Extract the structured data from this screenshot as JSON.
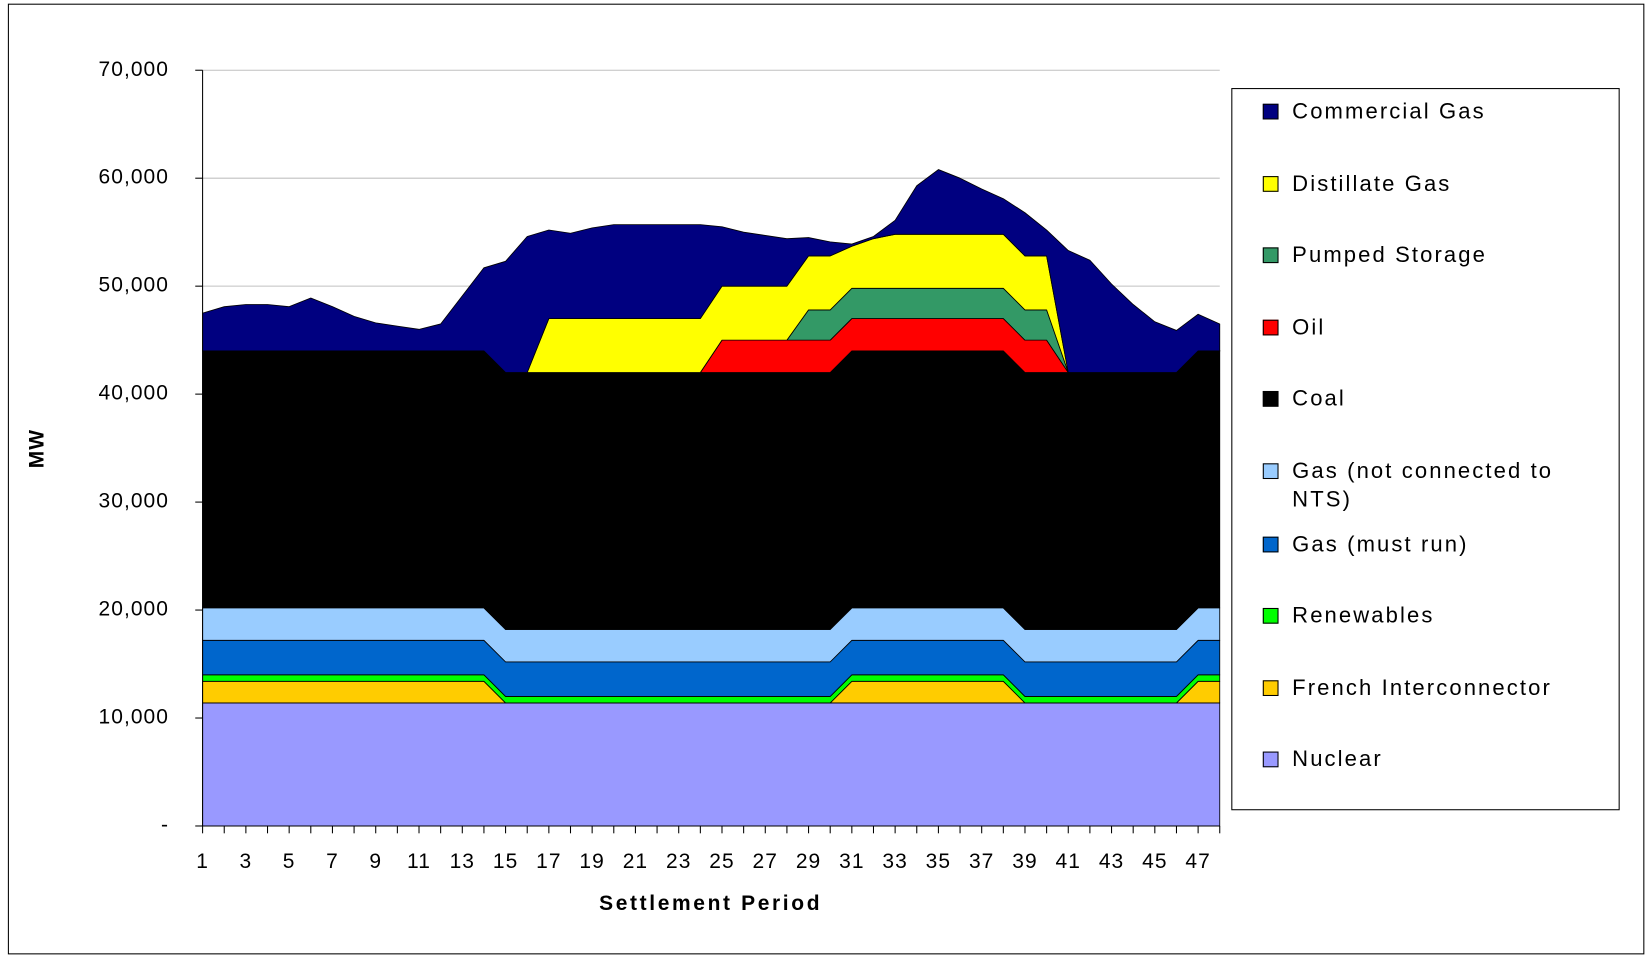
{
  "chart_data": {
    "type": "stacked_area",
    "xlabel": "Settlement Period",
    "ylabel": "MW",
    "x": [
      1,
      2,
      3,
      4,
      5,
      6,
      7,
      8,
      9,
      10,
      11,
      12,
      13,
      14,
      15,
      16,
      17,
      18,
      19,
      20,
      21,
      22,
      23,
      24,
      25,
      26,
      27,
      28,
      29,
      30,
      31,
      32,
      33,
      34,
      35,
      36,
      37,
      38,
      39,
      40,
      41,
      42,
      43,
      44,
      45,
      46,
      47,
      48
    ],
    "xlim": [
      1,
      48
    ],
    "xticks": [
      1,
      3,
      5,
      7,
      9,
      11,
      13,
      15,
      17,
      19,
      21,
      23,
      25,
      27,
      29,
      31,
      33,
      35,
      37,
      39,
      41,
      43,
      45,
      47
    ],
    "ylim": [
      0,
      70000
    ],
    "yticks": [
      {
        "value": 0,
        "label": "-"
      },
      {
        "value": 10000,
        "label": "10,000"
      },
      {
        "value": 20000,
        "label": "20,000"
      },
      {
        "value": 30000,
        "label": "30,000"
      },
      {
        "value": 40000,
        "label": "40,000"
      },
      {
        "value": 50000,
        "label": "50,000"
      },
      {
        "value": 60000,
        "label": "60,000"
      },
      {
        "value": 70000,
        "label": "70,000"
      }
    ],
    "grid": true,
    "legend": "right",
    "series": [
      {
        "name": "Nuclear",
        "color": "#9999ff",
        "values": [
          11400,
          11400,
          11400,
          11400,
          11400,
          11400,
          11400,
          11400,
          11400,
          11400,
          11400,
          11400,
          11400,
          11400,
          11400,
          11400,
          11400,
          11400,
          11400,
          11400,
          11400,
          11400,
          11400,
          11400,
          11400,
          11400,
          11400,
          11400,
          11400,
          11400,
          11400,
          11400,
          11400,
          11400,
          11400,
          11400,
          11400,
          11400,
          11400,
          11400,
          11400,
          11400,
          11400,
          11400,
          11400,
          11400,
          11400,
          11400
        ]
      },
      {
        "name": "French Interconnector",
        "color": "#ffcc00",
        "values": [
          2000,
          2000,
          2000,
          2000,
          2000,
          2000,
          2000,
          2000,
          2000,
          2000,
          2000,
          2000,
          2000,
          2000,
          0,
          0,
          0,
          0,
          0,
          0,
          0,
          0,
          0,
          0,
          0,
          0,
          0,
          0,
          0,
          0,
          2000,
          2000,
          2000,
          2000,
          2000,
          2000,
          2000,
          2000,
          0,
          0,
          0,
          0,
          0,
          0,
          0,
          0,
          2000,
          2000
        ]
      },
      {
        "name": "Renewables",
        "color": "#00ff00",
        "values": [
          600,
          600,
          600,
          600,
          600,
          600,
          600,
          600,
          600,
          600,
          600,
          600,
          600,
          600,
          600,
          600,
          600,
          600,
          600,
          600,
          600,
          600,
          600,
          600,
          600,
          600,
          600,
          600,
          600,
          600,
          600,
          600,
          600,
          600,
          600,
          600,
          600,
          600,
          600,
          600,
          600,
          600,
          600,
          600,
          600,
          600,
          600,
          600
        ]
      },
      {
        "name": "Gas (must run)",
        "color": "#0066cc",
        "values": [
          3200,
          3200,
          3200,
          3200,
          3200,
          3200,
          3200,
          3200,
          3200,
          3200,
          3200,
          3200,
          3200,
          3200,
          3200,
          3200,
          3200,
          3200,
          3200,
          3200,
          3200,
          3200,
          3200,
          3200,
          3200,
          3200,
          3200,
          3200,
          3200,
          3200,
          3200,
          3200,
          3200,
          3200,
          3200,
          3200,
          3200,
          3200,
          3200,
          3200,
          3200,
          3200,
          3200,
          3200,
          3200,
          3200,
          3200,
          3200
        ]
      },
      {
        "name": "Gas (not connected to NTS)",
        "color": "#99ccff",
        "values": [
          3000,
          3000,
          3000,
          3000,
          3000,
          3000,
          3000,
          3000,
          3000,
          3000,
          3000,
          3000,
          3000,
          3000,
          3000,
          3000,
          3000,
          3000,
          3000,
          3000,
          3000,
          3000,
          3000,
          3000,
          3000,
          3000,
          3000,
          3000,
          3000,
          3000,
          3000,
          3000,
          3000,
          3000,
          3000,
          3000,
          3000,
          3000,
          3000,
          3000,
          3000,
          3000,
          3000,
          3000,
          3000,
          3000,
          3000,
          3000
        ]
      },
      {
        "name": "Coal",
        "color": "#000000",
        "values": [
          23800,
          23800,
          23800,
          23800,
          23800,
          23800,
          23800,
          23800,
          23800,
          23800,
          23800,
          23800,
          23800,
          23800,
          23800,
          23800,
          23800,
          23800,
          23800,
          23800,
          23800,
          23800,
          23800,
          23800,
          23800,
          23800,
          23800,
          23800,
          23800,
          23800,
          23800,
          23800,
          23800,
          23800,
          23800,
          23800,
          23800,
          23800,
          23800,
          23800,
          23800,
          23800,
          23800,
          23800,
          23800,
          23800,
          23800,
          23800
        ]
      },
      {
        "name": "Oil",
        "color": "#ff0000",
        "values": [
          0,
          0,
          0,
          0,
          0,
          0,
          0,
          0,
          0,
          0,
          0,
          0,
          0,
          0,
          0,
          0,
          0,
          0,
          0,
          0,
          0,
          0,
          0,
          0,
          3000,
          3000,
          3000,
          3000,
          3000,
          3000,
          3000,
          3000,
          3000,
          3000,
          3000,
          3000,
          3000,
          3000,
          3000,
          3000,
          0,
          0,
          0,
          0,
          0,
          0,
          0,
          0
        ]
      },
      {
        "name": "Pumped Storage",
        "color": "#339966",
        "values": [
          0,
          0,
          0,
          0,
          0,
          0,
          0,
          0,
          0,
          0,
          0,
          0,
          0,
          0,
          0,
          0,
          0,
          0,
          0,
          0,
          0,
          0,
          0,
          0,
          0,
          0,
          0,
          0,
          2800,
          2800,
          2800,
          2800,
          2800,
          2800,
          2800,
          2800,
          2800,
          2800,
          2800,
          2800,
          0,
          0,
          0,
          0,
          0,
          0,
          0,
          0
        ]
      },
      {
        "name": "Distillate Gas",
        "color": "#ffff00",
        "values": [
          0,
          0,
          0,
          0,
          0,
          0,
          0,
          0,
          0,
          0,
          0,
          0,
          0,
          0,
          0,
          0,
          5000,
          5000,
          5000,
          5000,
          5000,
          5000,
          5000,
          5000,
          5000,
          5000,
          5000,
          5000,
          5000,
          5000,
          3900,
          4600,
          5000,
          5000,
          5000,
          5000,
          5000,
          5000,
          5000,
          5000,
          0,
          0,
          0,
          0,
          0,
          0,
          0,
          0
        ]
      },
      {
        "name": "Commercial Gas",
        "color": "#000080",
        "values": [
          3500,
          4100,
          4300,
          4300,
          4100,
          4900,
          4100,
          3200,
          2600,
          2300,
          2000,
          2500,
          5100,
          7700,
          10300,
          12600,
          8200,
          7900,
          8400,
          8700,
          8700,
          8700,
          8700,
          8700,
          5500,
          5000,
          4700,
          4400,
          1700,
          1300,
          200,
          200,
          1300,
          4500,
          6000,
          5200,
          4200,
          3300,
          4000,
          2400,
          11300,
          10400,
          8200,
          6300,
          4700,
          3900,
          3400,
          2500
        ]
      }
    ]
  }
}
